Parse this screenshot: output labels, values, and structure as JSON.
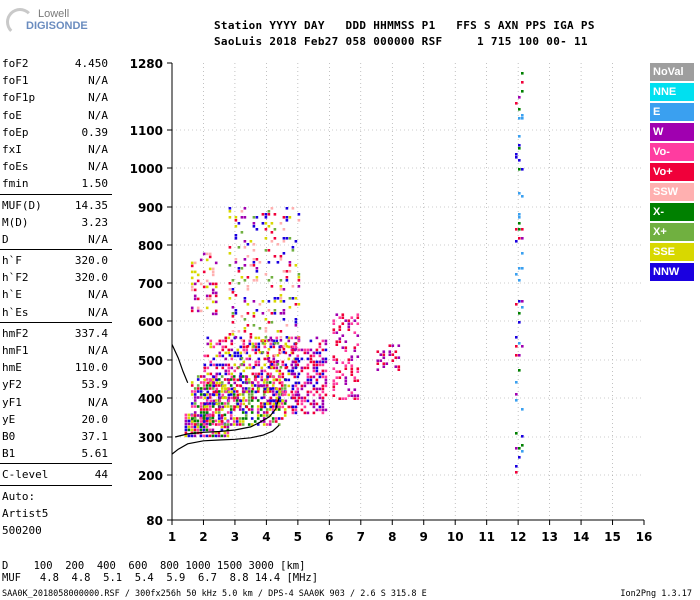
{
  "logo": {
    "top": "Lowell",
    "bottom": "DIGISONDE"
  },
  "header": {
    "line1": "Station YYYY DAY   DDD HHMMSS P1   FFS S AXN PPS IGA PS",
    "line2": "SaoLuis 2018 Feb27 058 000000 RSF     1 715 100 00- 11"
  },
  "params": {
    "group1": [
      {
        "name": "foF2",
        "value": "4.450"
      },
      {
        "name": "foF1",
        "value": "N/A"
      },
      {
        "name": "foF1p",
        "value": "N/A"
      },
      {
        "name": "foE",
        "value": "N/A"
      },
      {
        "name": "foEp",
        "value": "0.39"
      },
      {
        "name": "fxI",
        "value": "N/A"
      },
      {
        "name": "foEs",
        "value": "N/A"
      },
      {
        "name": "fmin",
        "value": "1.50"
      }
    ],
    "group2": [
      {
        "name": "MUF(D)",
        "value": "14.35"
      },
      {
        "name": "M(D)",
        "value": "3.23"
      },
      {
        "name": "D",
        "value": "N/A"
      }
    ],
    "group3": [
      {
        "name": "h`F",
        "value": "320.0"
      },
      {
        "name": "h`F2",
        "value": "320.0"
      },
      {
        "name": "h`E",
        "value": "N/A"
      },
      {
        "name": "h`Es",
        "value": "N/A"
      }
    ],
    "group4": [
      {
        "name": "hmF2",
        "value": "337.4"
      },
      {
        "name": "hmF1",
        "value": "N/A"
      },
      {
        "name": "hmE",
        "value": "110.0"
      },
      {
        "name": "yF2",
        "value": "53.9"
      },
      {
        "name": "yF1",
        "value": "N/A"
      },
      {
        "name": "yE",
        "value": "20.0"
      },
      {
        "name": "B0",
        "value": "37.1"
      },
      {
        "name": "B1",
        "value": "5.61"
      }
    ],
    "group5": [
      {
        "name": "C-level",
        "value": "44"
      }
    ],
    "auto": [
      "Auto:",
      "Artist5",
      "500200"
    ]
  },
  "legend": [
    {
      "label": "NoVal",
      "color": "#9e9e9e"
    },
    {
      "label": "NNE",
      "color": "#00e0f0"
    },
    {
      "label": "E",
      "color": "#3aa0f0"
    },
    {
      "label": "W",
      "color": "#a000b0"
    },
    {
      "label": "Vo-",
      "color": "#ff3ca0"
    },
    {
      "label": "Vo+",
      "color": "#f0003a"
    },
    {
      "label": "SSW",
      "color": "#ffb0b0"
    },
    {
      "label": "X-",
      "color": "#008000"
    },
    {
      "label": "X+",
      "color": "#70b040"
    },
    {
      "label": "SSE",
      "color": "#d8d800"
    },
    {
      "label": "NNW",
      "color": "#1a00e0"
    }
  ],
  "footer": {
    "d_line": "D    100  200  400  600  800 1000 1500 3000 [km]",
    "muf_line": "MUF   4.8  4.8  5.1  5.4  5.9  6.7  8.8 14.4 [MHz]",
    "info": "SAA0K_2018058000000.RSF / 300fx256h 50 kHz 5.0 km / DPS-4 SAA0K 903 / 2.6 S 315.8 E",
    "version": "Ion2Png 1.3.17"
  },
  "chart_data": {
    "type": "scatter",
    "title": "",
    "xlabel": "",
    "ylabel": "",
    "xlim": [
      1,
      16
    ],
    "ylim": [
      80,
      1280
    ],
    "y_scale": "nonlinear (ionogram height)",
    "x_ticks": [
      1,
      2,
      3,
      4,
      5,
      6,
      7,
      8,
      9,
      10,
      11,
      12,
      13,
      14,
      15,
      16
    ],
    "y_ticks": [
      80,
      200,
      300,
      400,
      500,
      600,
      700,
      800,
      900,
      1000,
      1100,
      1280
    ],
    "grid": true,
    "legend_position": "right",
    "clusters": [
      {
        "x": [
          1.4,
          2.8
        ],
        "y": [
          300,
          360
        ],
        "density": 0.7,
        "colors": [
          "#f0003a",
          "#ff3ca0",
          "#008000",
          "#a000b0",
          "#1a00e0",
          "#d8d800"
        ]
      },
      {
        "x": [
          1.6,
          4.6
        ],
        "y": [
          330,
          460
        ],
        "density": 0.6,
        "colors": [
          "#f0003a",
          "#ff3ca0",
          "#a000b0",
          "#d8d800",
          "#008000",
          "#1a00e0",
          "#70b040"
        ]
      },
      {
        "x": [
          2.0,
          5.0
        ],
        "y": [
          380,
          560
        ],
        "density": 0.4,
        "colors": [
          "#f0003a",
          "#a000b0",
          "#d8d800",
          "#1a00e0",
          "#ff3ca0"
        ]
      },
      {
        "x": [
          2.8,
          5.0
        ],
        "y": [
          480,
          900
        ],
        "density": 0.18,
        "colors": [
          "#d8d800",
          "#a000b0",
          "#f0003a",
          "#70b040",
          "#ffb0b0",
          "#1a00e0"
        ]
      },
      {
        "x": [
          1.6,
          2.4
        ],
        "y": [
          620,
          780
        ],
        "density": 0.22,
        "colors": [
          "#a000b0",
          "#f0003a",
          "#d8d800",
          "#ffb0b0"
        ]
      },
      {
        "x": [
          4.8,
          5.9
        ],
        "y": [
          360,
          560
        ],
        "density": 0.45,
        "colors": [
          "#f0003a",
          "#a000b0",
          "#ff3ca0",
          "#1a00e0"
        ]
      },
      {
        "x": [
          6.1,
          6.9
        ],
        "y": [
          400,
          620
        ],
        "density": 0.35,
        "colors": [
          "#f0003a",
          "#a000b0",
          "#ff3ca0"
        ]
      },
      {
        "x": [
          7.5,
          8.2
        ],
        "y": [
          470,
          540
        ],
        "density": 0.35,
        "colors": [
          "#a000b0",
          "#f0003a"
        ]
      },
      {
        "x": [
          11.9,
          12.1
        ],
        "y": [
          180,
          1280
        ],
        "density": 0.12,
        "colors": [
          "#a000b0",
          "#1a00e0",
          "#3aa0f0",
          "#008000",
          "#f0003a"
        ]
      }
    ],
    "traces": [
      {
        "name": "",
        "x": [
          1.0,
          1.2,
          1.5,
          2.0,
          2.5,
          3.0,
          3.5,
          3.9,
          4.2,
          4.4
        ],
        "y": [
          255,
          268,
          282,
          290,
          292,
          294,
          298,
          305,
          315,
          330
        ]
      },
      {
        "name": "",
        "x": [
          1.1,
          1.5,
          2.0,
          2.5,
          3.0,
          3.5,
          3.8,
          4.1,
          4.3,
          4.4
        ],
        "y": [
          300,
          308,
          312,
          314,
          318,
          326,
          338,
          352,
          372,
          400
        ]
      },
      {
        "name": "",
        "x": [
          1.0,
          1.2,
          1.35,
          1.5
        ],
        "y": [
          540,
          505,
          470,
          440
        ]
      }
    ]
  }
}
